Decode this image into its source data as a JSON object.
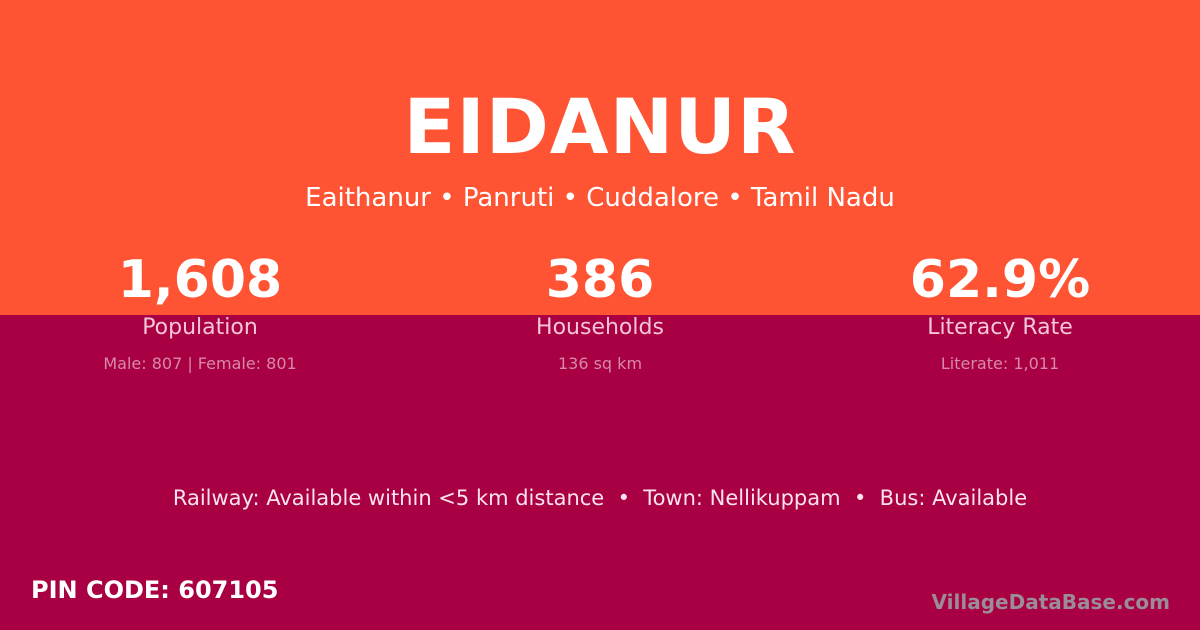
{
  "title": "EIDANUR",
  "subtitle": "Eaithanur • Panruti • Cuddalore • Tamil Nadu",
  "colors": {
    "top_bg": "#ff5433",
    "bottom_bg": "#a80042"
  },
  "stats": [
    {
      "value": "1,608",
      "label": "Population",
      "detail": "Male: 807 | Female: 801"
    },
    {
      "value": "386",
      "label": "Households",
      "detail": "136 sq km"
    },
    {
      "value": "62.9%",
      "label": "Literacy Rate",
      "detail": "Literate: 1,011"
    }
  ],
  "facts": "Railway: Available within <5 km distance  •  Town: Nellikuppam  •  Bus: Available",
  "pin": "PIN CODE: 607105",
  "brand": "VillageDataBase.com"
}
